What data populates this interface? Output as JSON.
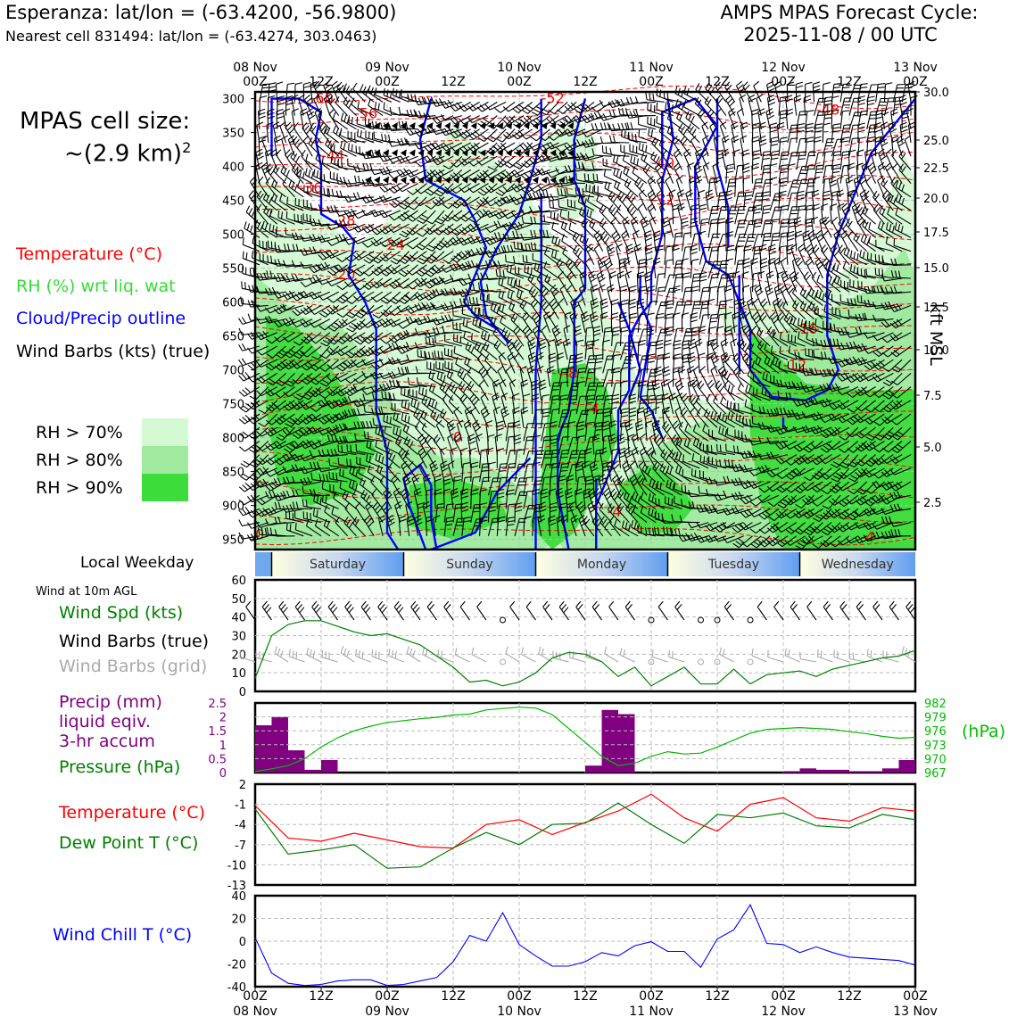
{
  "header": {
    "station_title": "Esperanza: lat/lon = (-63.4200, -56.9800)",
    "nearest_cell": "Nearest cell 831494: lat/lon = (-63.4274, 303.0463)",
    "forecast_title": "AMPS MPAS Forecast Cycle:",
    "forecast_cycle": "2025-11-08 / 00 UTC"
  },
  "cell_size": {
    "line1": "MPAS cell size:",
    "line2": "~(2.9 km)",
    "exponent": "2"
  },
  "legend": {
    "temperature": "Temperature (°C)",
    "rh": "RH (%) wrt liq. wat",
    "cloud": "Cloud/Precip outline",
    "barbs": "Wind Barbs (kts) (true)",
    "rh70": "RH > 70%",
    "rh80": "RH > 80%",
    "rh90": "RH > 90%"
  },
  "colors": {
    "temperature": "#ff0000",
    "rh_label": "#33dd33",
    "cloud": "#0000ff",
    "rh70": "#d4fad4",
    "rh80": "#a0eaa0",
    "rh90": "#3cdc3c",
    "wind_speed": "#008000",
    "grid_barbs": "#aaaaaa",
    "precip": "#800080",
    "pressure": "#00bb00",
    "dewpoint": "#008000",
    "windchill": "#0000ff"
  },
  "time_axis": {
    "top_labels": [
      {
        "top": "08 Nov",
        "bottom": "00Z"
      },
      {
        "top": "",
        "bottom": "12Z"
      },
      {
        "top": "09 Nov",
        "bottom": "00Z"
      },
      {
        "top": "",
        "bottom": "12Z"
      },
      {
        "top": "10 Nov",
        "bottom": "00Z"
      },
      {
        "top": "",
        "bottom": "12Z"
      },
      {
        "top": "11 Nov",
        "bottom": "00Z"
      },
      {
        "top": "",
        "bottom": "12Z"
      },
      {
        "top": "12 Nov",
        "bottom": "00Z"
      },
      {
        "top": "",
        "bottom": "12Z"
      },
      {
        "top": "13 Nov",
        "bottom": "00Z"
      }
    ]
  },
  "weekday_bar": {
    "label": "Local Weekday",
    "days": [
      "Saturday",
      "Sunday",
      "Monday",
      "Tuesday",
      "Wednesday"
    ]
  },
  "wind_panel": {
    "heading": "Wind at 10m AGL",
    "speed_label": "Wind Spd (kts)",
    "barbs_true_label": "Wind Barbs (true)",
    "barbs_grid_label": "Wind Barbs (grid)"
  },
  "precip_panel": {
    "label1": "Precip (mm)",
    "label2": "liquid eqiv.",
    "label3": "3-hr accum",
    "pressure_label": "Pressure (hPa)",
    "right_unit": "(hPa)"
  },
  "temp_panel": {
    "temp_label": "Temperature (°C)",
    "dew_label": "Dew Point T (°C)"
  },
  "chill_panel": {
    "label": "Wind Chill T (°C)"
  },
  "axis_titles": {
    "kft": "kft MSL"
  },
  "chart_data": [
    {
      "type": "heatmap",
      "name": "vertical cross-section",
      "x_unit": "forecast hour (from 2025-11-08 00Z)",
      "xlim": [
        0,
        120
      ],
      "y_left_ticks": [
        300,
        350,
        400,
        450,
        500,
        550,
        600,
        650,
        700,
        750,
        800,
        850,
        900,
        950
      ],
      "y_right_ticks": [
        "30.0",
        "25.0",
        "22.5",
        "20.0",
        "17.5",
        "15.0",
        "12.5",
        "10.0",
        "7.5",
        "5.0",
        "2.5"
      ],
      "temperature_contour_labels": [
        "-60",
        "-56",
        "-52",
        "-48",
        "-44",
        "-40",
        "-36",
        "-32",
        "-28",
        "-24",
        "-20",
        "-16",
        "-12",
        "-8",
        "-4",
        "0",
        "-4",
        "0",
        "-4"
      ]
    },
    {
      "type": "line",
      "name": "wind speed 10m",
      "xlim": [
        0,
        120
      ],
      "ylim": [
        0,
        60
      ],
      "y_ticks": [
        0,
        10,
        20,
        30,
        40,
        50,
        60
      ],
      "x": [
        0,
        3,
        6,
        9,
        12,
        15,
        18,
        21,
        24,
        27,
        30,
        33,
        36,
        39,
        42,
        45,
        48,
        51,
        54,
        57,
        60,
        63,
        66,
        69,
        72,
        75,
        78,
        81,
        84,
        87,
        90,
        93,
        96,
        99,
        102,
        105,
        108,
        111,
        114,
        117,
        120
      ],
      "values": [
        7,
        30,
        36,
        38,
        38,
        35,
        32,
        30,
        31,
        28,
        25,
        19,
        13,
        5,
        6,
        3,
        5,
        10,
        18,
        21,
        20,
        16,
        8,
        13,
        3,
        8,
        13,
        4,
        4,
        12,
        4,
        9,
        10,
        11,
        8,
        12,
        14,
        16,
        18,
        19,
        22
      ]
    },
    {
      "type": "bar",
      "name": "precipitation 3-hr accum",
      "ylim": [
        0,
        2.5
      ],
      "y_ticks": [
        0,
        0.5,
        1.0,
        1.5,
        2.0,
        2.5
      ],
      "x": [
        0,
        3,
        6,
        9,
        12,
        15,
        18,
        21,
        24,
        27,
        30,
        33,
        36,
        39,
        42,
        45,
        48,
        51,
        54,
        57,
        60,
        63,
        66,
        69,
        72,
        75,
        78,
        81,
        84,
        87,
        90,
        93,
        96,
        99,
        102,
        105,
        108,
        111,
        114,
        117
      ],
      "values": [
        1.7,
        2.0,
        0.8,
        0.1,
        0.45,
        0,
        0,
        0,
        0,
        0,
        0,
        0,
        0,
        0,
        0,
        0,
        0,
        0,
        0,
        0,
        0.25,
        2.25,
        2.1,
        0,
        0,
        0,
        0,
        0,
        0,
        0,
        0,
        0,
        0.05,
        0.15,
        0.1,
        0.1,
        0.05,
        0.05,
        0.15,
        0.45
      ]
    },
    {
      "type": "line",
      "name": "pressure",
      "ylim": [
        967,
        982
      ],
      "y_ticks": [
        967,
        970,
        973,
        976,
        979,
        982
      ],
      "x": [
        0,
        3,
        6,
        9,
        12,
        15,
        18,
        21,
        24,
        27,
        30,
        33,
        36,
        39,
        42,
        45,
        48,
        51,
        54,
        57,
        60,
        63,
        66,
        69,
        72,
        75,
        78,
        81,
        84,
        87,
        90,
        93,
        96,
        99,
        102,
        105,
        108,
        111,
        114,
        117,
        120
      ],
      "values": [
        967.2,
        967.8,
        968.5,
        970,
        972.5,
        974.5,
        976,
        977,
        977.8,
        978.2,
        978.6,
        978.9,
        979.4,
        979.6,
        980.5,
        980.8,
        981.1,
        980.9,
        979.5,
        976.5,
        973.5,
        970.5,
        968.5,
        969,
        970.5,
        971.5,
        971,
        971.2,
        972.5,
        974,
        975.5,
        976.3,
        976.5,
        976.7,
        976.5,
        976.3,
        975.8,
        975.4,
        974.8,
        974.4,
        974.6
      ]
    },
    {
      "type": "line",
      "name": "temperature and dew point",
      "ylim": [
        -13,
        2
      ],
      "y_ticks": [
        2,
        -1,
        -4,
        -7,
        -10,
        -13
      ],
      "x": [
        0,
        6,
        12,
        18,
        24,
        30,
        36,
        42,
        48,
        54,
        60,
        66,
        72,
        78,
        84,
        90,
        96,
        102,
        108,
        114,
        120
      ],
      "series": [
        {
          "name": "Temperature (°C)",
          "values": [
            -1.2,
            -6,
            -6.5,
            -5.3,
            -6.3,
            -7.3,
            -7.5,
            -4,
            -3.3,
            -5.5,
            -3.7,
            -2,
            0.5,
            -3,
            -5,
            -1,
            0,
            -3,
            -3.5,
            -1.5,
            -2
          ]
        },
        {
          "name": "Dew Point T (°C)",
          "values": [
            -1.7,
            -8.4,
            -7.8,
            -7,
            -10.5,
            -10.3,
            -7.5,
            -5.2,
            -7,
            -4,
            -3.8,
            -0.8,
            -4,
            -6.8,
            -2.5,
            -3,
            -2.3,
            -4.2,
            -4.5,
            -2.5,
            -3.3
          ]
        }
      ]
    },
    {
      "type": "line",
      "name": "wind chill",
      "ylim": [
        -40,
        40
      ],
      "y_ticks": [
        40,
        20,
        0,
        -20,
        -40
      ],
      "x": [
        0,
        3,
        6,
        9,
        12,
        15,
        18,
        21,
        24,
        27,
        30,
        33,
        36,
        39,
        42,
        45,
        48,
        51,
        54,
        57,
        60,
        63,
        66,
        69,
        72,
        75,
        78,
        81,
        84,
        87,
        90,
        93,
        96,
        99,
        102,
        105,
        108,
        111,
        114,
        117,
        120
      ],
      "values": [
        3,
        -28,
        -37,
        -39,
        -38,
        -35,
        -34,
        -34,
        -39,
        -38,
        -35,
        -32,
        -18,
        5,
        0,
        25,
        -3,
        -13,
        -22,
        -22,
        -18,
        -10,
        -13,
        -4,
        -0.5,
        -9,
        -9,
        -23,
        2,
        10,
        32,
        -2,
        -3,
        -10,
        -5,
        -10,
        -14,
        -15,
        -16,
        -17,
        -21
      ]
    }
  ]
}
